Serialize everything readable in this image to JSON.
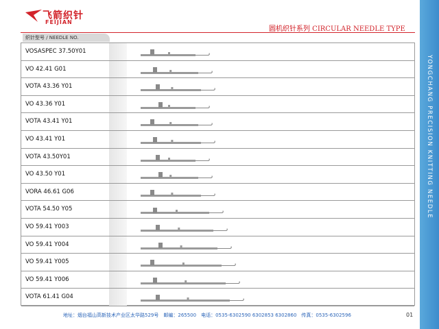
{
  "header": {
    "logo_cn": "飞箭织针",
    "logo_en": "FEIJIAN",
    "title": "圆机织针系列 CIRCULAR NEEDLE TYPE"
  },
  "table": {
    "column_header": "织针型号 / NEEDLE NO.",
    "rows": [
      "VOSASPEC  37.50Y01",
      "VO  42.41  G01",
      "VOTA  43.36  Y01",
      "VO   43.36  Y01",
      "VOTA  43.41  Y01",
      "VO   43.41  Y01",
      "VOTA 43.50Y01",
      "VO  43.50  Y01",
      "VORA  46.61  G06",
      "VOTA  54.50  Y05",
      "VO  59.41  Y003",
      "VO  59.41  Y004",
      "VO  59.41  Y005",
      "VO  59.41  Y006",
      "VOTA  61.41  G04"
    ]
  },
  "side_text": "YONGCHANG PRECISION KNITTING NEEDLE",
  "footer": {
    "address": "地址：烟台福山高新技术产业区太华路529号　邮编：265500　电话：0535-6302590 6302853 6302860　传真：0535-6302596",
    "page": "01"
  }
}
